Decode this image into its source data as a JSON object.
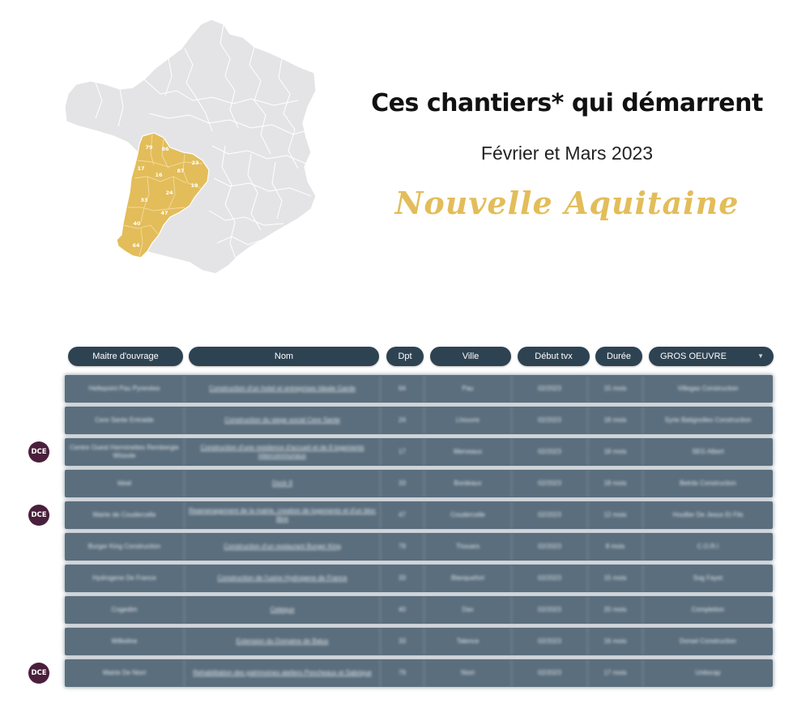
{
  "header": {
    "title": "Ces chantiers* qui démarrent",
    "subtitle": "Février et Mars 2023",
    "region": "Nouvelle Aquitaine"
  },
  "colors": {
    "accent": "#e3bd5a",
    "map_grey": "#e4e4e6",
    "header_bg": "#2e4352",
    "row_bg": "#5b6e7d",
    "dce_badge": "#4a1f3c"
  },
  "map": {
    "departments": [
      "79",
      "86",
      "17",
      "16",
      "87",
      "23",
      "19",
      "24",
      "33",
      "47",
      "40",
      "64"
    ]
  },
  "table": {
    "columns": [
      "Maitre d'ouvrage",
      "Nom",
      "Dpt",
      "Ville",
      "Début tvx",
      "Durée"
    ],
    "filter_value": "GROS OEUVRE",
    "dce_label": "DCE",
    "rows": [
      {
        "maitre": "Hellepoint Pau Pyrenées",
        "nom": "Construction d'un hotel et entreprises Ideale Garde",
        "dpt": "64",
        "ville": "Pau",
        "debut": "02/2023",
        "duree": "15 mois",
        "lot": "Villegas Construction",
        "dce": false
      },
      {
        "maitre": "Cere Sante Entraide",
        "nom": "Construction du siege social Cere Sante",
        "dpt": "24",
        "ville": "Lhouvre",
        "debut": "02/2023",
        "duree": "18 mois",
        "lot": "Syrie Batignolles Construction",
        "dce": false
      },
      {
        "maitre": "Centre Ouest Herminettes Rembergie Wissole",
        "nom": "Construction d'une residence d'accueil et de 8 logements intercommunaux",
        "dpt": "17",
        "ville": "Merveaux",
        "debut": "02/2023",
        "duree": "18 mois",
        "lot": "SEG Albert",
        "dce": true
      },
      {
        "maitre": "Ideal",
        "nom": "Dock 9",
        "dpt": "33",
        "ville": "Bordeaux",
        "debut": "02/2023",
        "duree": "18 mois",
        "lot": "Belrds Construction",
        "dce": false
      },
      {
        "maitre": "Mairie de Coudercelle",
        "nom": "Reamenagement de la mairie, creation de logements et d'un bloc libre",
        "dpt": "47",
        "ville": "Coudercelle",
        "debut": "02/2023",
        "duree": "12 mois",
        "lot": "Houllier De Jesus Et Fils",
        "dce": true
      },
      {
        "maitre": "Burger King Construction",
        "nom": "Construction d'un restaurant Burger King",
        "dpt": "79",
        "ville": "Thouars",
        "debut": "02/2023",
        "duree": "8 mois",
        "lot": "C.O.R.I",
        "dce": false
      },
      {
        "maitre": "Hydrogene De France",
        "nom": "Construction de l'usine Hydrogene de France",
        "dpt": "33",
        "ville": "Blanquefort",
        "debut": "02/2023",
        "duree": "15 mois",
        "lot": "Sog Fayet",
        "dce": false
      },
      {
        "maitre": "Cogedim",
        "nom": "Celequo",
        "dpt": "40",
        "ville": "Dax",
        "debut": "02/2023",
        "duree": "20 mois",
        "lot": "Completion",
        "dce": false
      },
      {
        "maitre": "Wilkeline",
        "nom": "Extension du Domaine de Balus",
        "dpt": "33",
        "ville": "Talence",
        "debut": "02/2023",
        "duree": "16 mois",
        "lot": "Dorsel Construction",
        "dce": false
      },
      {
        "maitre": "Mairie De Niort",
        "nom": "Rehabilitation des patrimoines ateliers Poncheaux et Sabrique",
        "dpt": "79",
        "ville": "Niort",
        "debut": "02/2023",
        "duree": "17 mois",
        "lot": "Unilocap",
        "dce": true
      }
    ]
  }
}
